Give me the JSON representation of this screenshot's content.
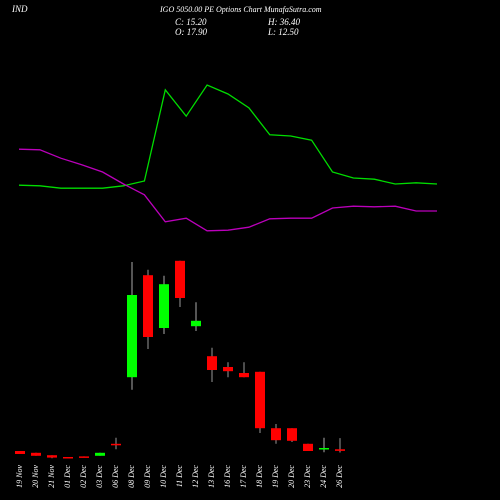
{
  "chart_data": {
    "type": "candlestick",
    "title_left": "IND",
    "title": "IGO 5050.00 PE Options Chart MunafaSutra.com",
    "stats": [
      "C: 15.20",
      "H: 36.40",
      "O: 17.90",
      "L: 12.50"
    ],
    "categories": [
      "19 Nov",
      "20 Nov",
      "21 Nov",
      "01 Dec",
      "02 Dec",
      "03 Dec",
      "06 Dec",
      "08 Dec",
      "09 Dec",
      "10 Dec",
      "11 Dec",
      "12 Dec",
      "13 Dec",
      "16 Dec",
      "17 Dec",
      "18 Dec",
      "19 Dec",
      "20 Dec",
      "23 Dec",
      "24 Dec",
      "26 Dec"
    ],
    "open": [
      15,
      12,
      8,
      5,
      6,
      7,
      27,
      138,
      308,
      220,
      332,
      223,
      173,
      155,
      145,
      147,
      53,
      53,
      27,
      18,
      17.9
    ],
    "high": [
      15,
      12,
      8,
      5,
      6,
      12,
      37,
      330,
      317,
      307,
      332,
      263,
      187,
      163,
      163,
      147,
      60,
      53,
      27,
      37,
      36.4
    ],
    "low": [
      10,
      7,
      3,
      4,
      5,
      7,
      18,
      117,
      185,
      210,
      255,
      215,
      130,
      138,
      138,
      45,
      27,
      30,
      15,
      13,
      12.5
    ],
    "close": [
      10,
      7,
      4,
      4,
      5,
      12,
      26,
      275,
      205,
      293,
      270,
      232,
      150,
      148,
      138,
      53,
      33,
      32,
      15,
      20,
      15.2
    ],
    "up_color": "#00ff00",
    "down_color": "#ff0000",
    "lines": [
      {
        "color": "#00dd00",
        "values": [
          458,
          457,
          453,
          453,
          453,
          457,
          465,
          617,
          573,
          625,
          610,
          587,
          542,
          540,
          533,
          480,
          470,
          468,
          460,
          462,
          460
        ]
      },
      {
        "color": "#bb00bb",
        "values": [
          518,
          517,
          503,
          492,
          480,
          460,
          442,
          397,
          403,
          382,
          383,
          388,
          402,
          403,
          403,
          420,
          423,
          422,
          423,
          415,
          415
        ]
      }
    ],
    "ylim": [
      0,
      760
    ]
  }
}
